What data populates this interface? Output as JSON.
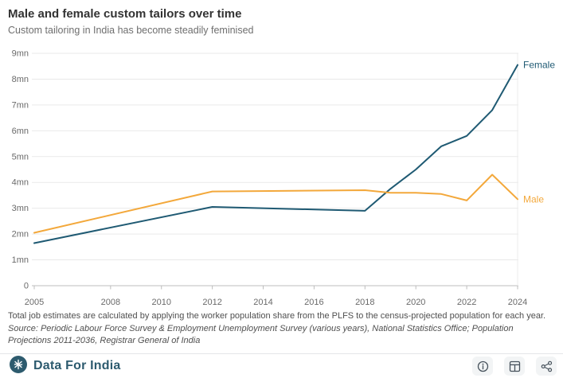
{
  "header": {
    "title": "Male and female custom tailors over time",
    "subtitle": "Custom tailoring in India has become steadily feminised"
  },
  "chart_data": {
    "type": "line",
    "title": "Male and female custom tailors over time",
    "subtitle": "Custom tailoring in India has become steadily feminised",
    "x": [
      2005,
      2012,
      2018,
      2019,
      2020,
      2021,
      2022,
      2023,
      2024
    ],
    "series": [
      {
        "name": "Female",
        "color": "#1f5a73",
        "values": [
          1.65,
          3.05,
          2.9,
          3.75,
          4.5,
          5.4,
          5.8,
          6.8,
          8.55
        ]
      },
      {
        "name": "Male",
        "color": "#f3a83b",
        "values": [
          2.05,
          3.65,
          3.7,
          3.6,
          3.6,
          3.55,
          3.3,
          4.3,
          3.35
        ]
      }
    ],
    "unit": "mn",
    "xlabel": "",
    "ylabel": "",
    "xlim": [
      2005,
      2024
    ],
    "ylim": [
      0,
      9
    ],
    "xticks": [
      2005,
      2008,
      2010,
      2012,
      2014,
      2016,
      2018,
      2020,
      2022,
      2024
    ],
    "yticks": [
      0,
      1,
      2,
      3,
      4,
      5,
      6,
      7,
      8,
      9
    ],
    "ytick_labels": [
      "0",
      "1mn",
      "2mn",
      "3mn",
      "4mn",
      "5mn",
      "6mn",
      "7mn",
      "8mn",
      "9mn"
    ],
    "grid": "horizontal",
    "legend_position": "line-end-labels",
    "colors": {
      "gridline": "#e9e9e9",
      "axis_line": "#bdbdbd",
      "tick_label": "#6a6a6a",
      "right_border": "#ededed"
    }
  },
  "footnote": "Total job estimates are calculated by applying the worker population share from the PLFS to the census-projected population for each year.",
  "source": "Source: Periodic Labour Force Survey & Employment Unemployment Survey (various years), National Statistics Office; Population Projections 2011-2036, Registrar General of India",
  "footer": {
    "brand": "Data For India",
    "brand_color": "#2c5a6e",
    "icons": [
      "info-icon",
      "data-table-icon",
      "share-icon"
    ]
  }
}
